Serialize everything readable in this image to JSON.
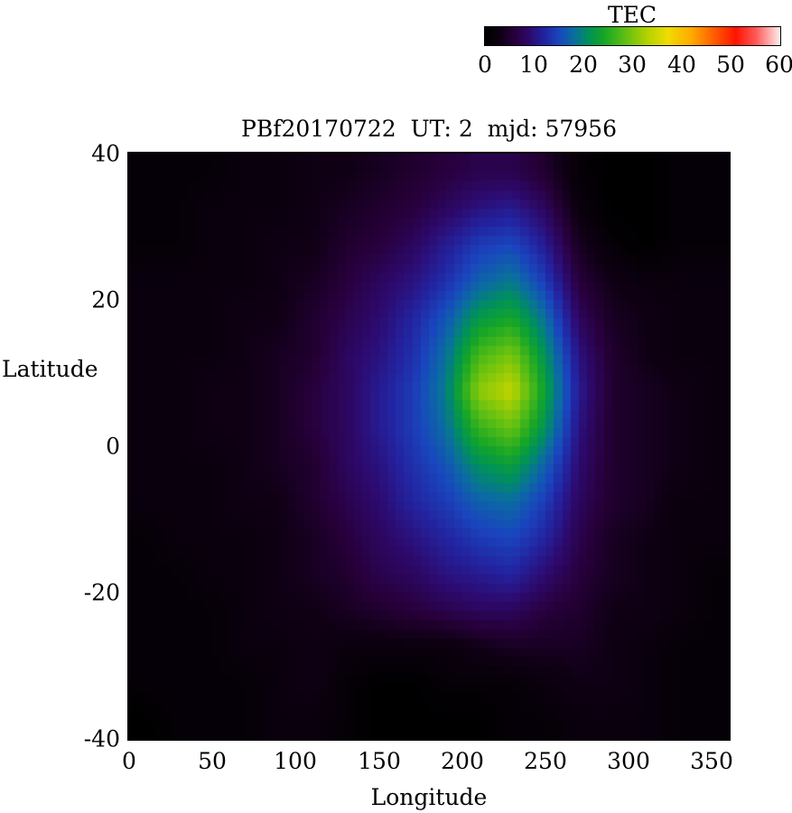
{
  "title": "PBf20170722  UT: 2  mjd: 57956",
  "colorbar": {
    "label": "TEC",
    "min": 0,
    "max": 60,
    "ticks": [
      "0",
      "10",
      "20",
      "30",
      "40",
      "50",
      "60"
    ]
  },
  "axes": {
    "xlabel": "Longitude",
    "ylabel": "Latitude",
    "x_ticks": [
      "0",
      "50",
      "100",
      "150",
      "200",
      "250",
      "300",
      "350"
    ],
    "y_ticks": [
      "40",
      "20",
      "0",
      "-20",
      "-40"
    ]
  },
  "chart_data": {
    "type": "heatmap",
    "title": "PBf20170722  UT: 2  mjd: 57956",
    "xlabel": "Longitude",
    "ylabel": "Latitude",
    "z_label": "TEC",
    "xlim": [
      0,
      360
    ],
    "ylim": [
      -40,
      40
    ],
    "zlim": [
      0,
      60
    ],
    "lon_centers": [
      10,
      30,
      50,
      70,
      90,
      110,
      130,
      150,
      170,
      190,
      210,
      230,
      250,
      270,
      290,
      310,
      330,
      350
    ],
    "lat_centers": [
      37.5,
      32.5,
      27.5,
      22.5,
      17.5,
      12.5,
      7.5,
      2.5,
      -2.5,
      -7.5,
      -12.5,
      -17.5,
      -22.5,
      -27.5,
      -32.5,
      -37.5
    ],
    "values": [
      [
        1,
        1,
        1,
        2,
        2,
        3,
        3,
        4,
        5,
        6,
        7,
        7,
        5,
        1,
        0,
        0,
        1,
        1
      ],
      [
        1,
        1,
        2,
        2,
        2,
        3,
        4,
        5,
        6,
        8,
        10,
        11,
        8,
        2,
        0,
        0,
        1,
        1
      ],
      [
        1,
        1,
        2,
        2,
        3,
        3,
        5,
        6,
        8,
        11,
        14,
        15,
        11,
        4,
        1,
        0,
        1,
        1
      ],
      [
        2,
        2,
        2,
        2,
        3,
        4,
        6,
        8,
        10,
        13,
        17,
        19,
        14,
        6,
        3,
        2,
        2,
        2
      ],
      [
        2,
        2,
        2,
        3,
        3,
        5,
        7,
        9,
        12,
        16,
        22,
        24,
        18,
        8,
        4,
        3,
        2,
        2
      ],
      [
        2,
        2,
        2,
        3,
        4,
        5,
        8,
        10,
        13,
        18,
        27,
        30,
        21,
        10,
        5,
        3,
        2,
        2
      ],
      [
        2,
        2,
        3,
        3,
        4,
        6,
        8,
        11,
        14,
        19,
        31,
        34,
        23,
        11,
        5,
        4,
        3,
        2
      ],
      [
        2,
        2,
        3,
        3,
        4,
        6,
        8,
        11,
        14,
        18,
        26,
        29,
        21,
        10,
        5,
        4,
        3,
        2
      ],
      [
        2,
        2,
        2,
        3,
        4,
        5,
        8,
        10,
        13,
        16,
        21,
        23,
        17,
        9,
        5,
        4,
        3,
        2
      ],
      [
        2,
        2,
        2,
        3,
        3,
        5,
        7,
        9,
        12,
        14,
        17,
        18,
        14,
        8,
        5,
        4,
        2,
        2
      ],
      [
        1,
        2,
        2,
        2,
        3,
        4,
        6,
        8,
        10,
        12,
        14,
        15,
        12,
        7,
        4,
        3,
        2,
        2
      ],
      [
        1,
        1,
        2,
        2,
        3,
        4,
        5,
        7,
        8,
        10,
        11,
        12,
        9,
        6,
        4,
        3,
        2,
        1
      ],
      [
        1,
        1,
        1,
        2,
        3,
        3,
        4,
        5,
        6,
        7,
        8,
        8,
        6,
        5,
        3,
        3,
        2,
        1
      ],
      [
        1,
        1,
        1,
        2,
        2,
        3,
        2,
        2,
        2,
        2,
        3,
        4,
        4,
        4,
        3,
        2,
        1,
        1
      ],
      [
        1,
        1,
        1,
        1,
        2,
        3,
        1,
        0,
        0,
        1,
        1,
        1,
        2,
        3,
        3,
        2,
        1,
        1
      ],
      [
        0,
        1,
        1,
        1,
        2,
        2,
        1,
        0,
        0,
        0,
        0,
        1,
        1,
        2,
        2,
        2,
        1,
        1
      ]
    ],
    "colormap_stops": [
      {
        "t": 0.0,
        "c": "#000000"
      },
      {
        "t": 0.05,
        "c": "#0f0014"
      },
      {
        "t": 0.1,
        "c": "#28003c"
      },
      {
        "t": 0.15,
        "c": "#2d0a6e"
      },
      {
        "t": 0.2,
        "c": "#2323a0"
      },
      {
        "t": 0.25,
        "c": "#1946be"
      },
      {
        "t": 0.3,
        "c": "#0a6ea0"
      },
      {
        "t": 0.35,
        "c": "#00915a"
      },
      {
        "t": 0.4,
        "c": "#14a528"
      },
      {
        "t": 0.47,
        "c": "#5abe14"
      },
      {
        "t": 0.55,
        "c": "#b4d200"
      },
      {
        "t": 0.62,
        "c": "#f0dc00"
      },
      {
        "t": 0.7,
        "c": "#ffaa00"
      },
      {
        "t": 0.78,
        "c": "#ff5a00"
      },
      {
        "t": 0.85,
        "c": "#ff1400"
      },
      {
        "t": 0.92,
        "c": "#ff5a5a"
      },
      {
        "t": 1.0,
        "c": "#ffebeb"
      }
    ],
    "legend_position": "top",
    "grid": false
  }
}
